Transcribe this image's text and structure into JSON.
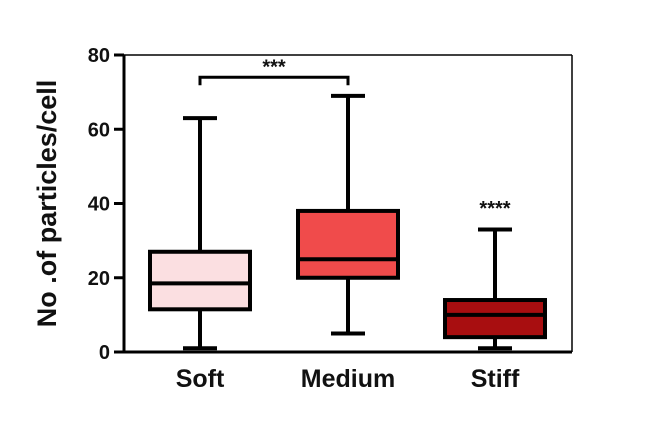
{
  "chart_data": {
    "type": "box",
    "title": "",
    "xlabel": "",
    "ylabel": "No .of particles/cell",
    "ylim": [
      0,
      80
    ],
    "yticks": [
      "0",
      "20",
      "40",
      "60",
      "80"
    ],
    "categories": [
      "Soft",
      "Medium",
      "Stiff"
    ],
    "boxes": [
      {
        "category": "Soft",
        "min": 1,
        "q1": 11.5,
        "median": 18.5,
        "q3": 27,
        "max": 63,
        "color": "#fbdfe1"
      },
      {
        "category": "Medium",
        "min": 5,
        "q1": 20,
        "median": 25,
        "q3": 38,
        "max": 69,
        "color": "#f04b4b"
      },
      {
        "category": "Stiff",
        "min": 1,
        "q1": 4,
        "median": 10,
        "q3": 14,
        "max": 33,
        "color": "#a80e10"
      }
    ],
    "annotations": [
      {
        "text": "***",
        "type": "bracket",
        "from": "Soft",
        "to": "Medium",
        "y": 74
      },
      {
        "text": "****",
        "type": "label",
        "category": "Stiff",
        "y": 38
      }
    ],
    "grid": false,
    "legend": "none"
  }
}
